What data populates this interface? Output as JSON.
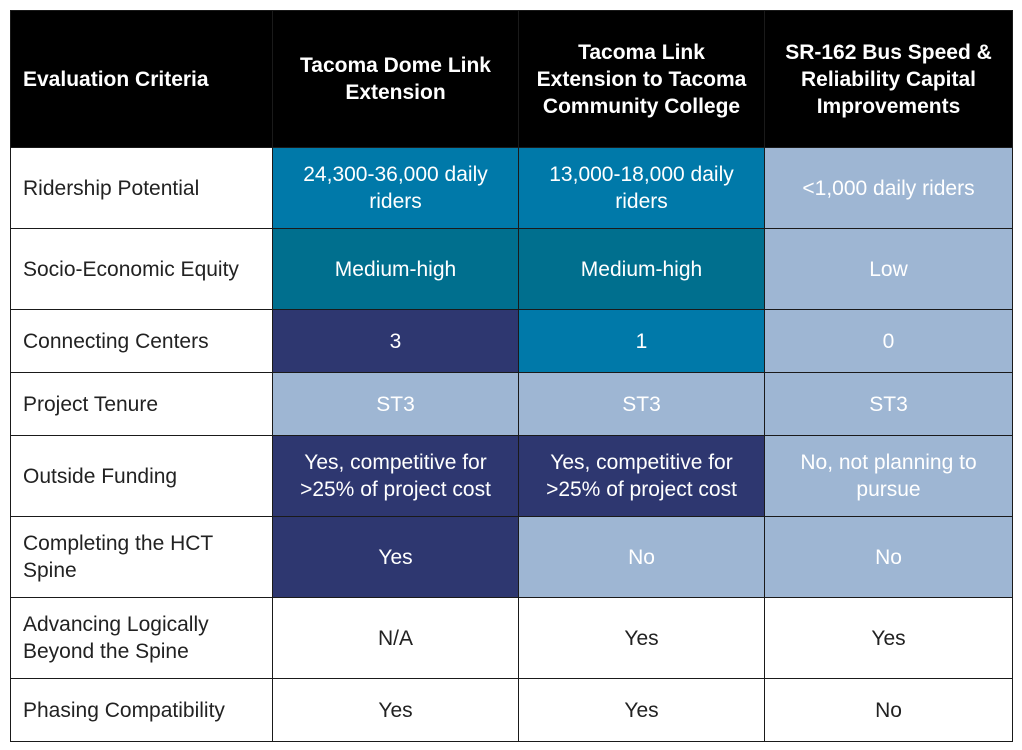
{
  "table": {
    "header": {
      "criteria": "Evaluation Criteria",
      "col1": "Tacoma Dome Link Extension",
      "col2": "Tacoma Link Extension to Tacoma Community College",
      "col3": "SR-162 Bus Speed & Reliability Capital Improvements"
    },
    "colors": {
      "blue": "#0079a9",
      "teal": "#006f8e",
      "navy": "#2e3770",
      "light": "#9eb6d3",
      "white": "#ffffff",
      "header": "#000000"
    },
    "rows": [
      {
        "criteria": "Ridership Potential",
        "c1": "24,300-36,000 daily riders",
        "c2": "13,000-18,000 daily riders",
        "c3": "<1,000 daily riders",
        "fills": [
          "blue",
          "blue",
          "light"
        ]
      },
      {
        "criteria": "Socio-Economic Equity",
        "c1": "Medium-high",
        "c2": "Medium-high",
        "c3": "Low",
        "fills": [
          "teal",
          "teal",
          "light"
        ]
      },
      {
        "criteria": "Connecting Centers",
        "c1": "3",
        "c2": "1",
        "c3": "0",
        "fills": [
          "navy",
          "blue",
          "light"
        ]
      },
      {
        "criteria": "Project Tenure",
        "c1": "ST3",
        "c2": "ST3",
        "c3": "ST3",
        "fills": [
          "light",
          "light",
          "light"
        ]
      },
      {
        "criteria": "Outside Funding",
        "c1": "Yes, competitive for >25% of project cost",
        "c2": "Yes, competitive for >25% of project cost",
        "c3": "No, not planning to pursue",
        "fills": [
          "navy",
          "navy",
          "light"
        ]
      },
      {
        "criteria": "Completing the HCT Spine",
        "c1": "Yes",
        "c2": "No",
        "c3": "No",
        "fills": [
          "navy",
          "light",
          "light"
        ]
      },
      {
        "criteria": "Advancing Logically Beyond the Spine",
        "c1": "N/A",
        "c2": "Yes",
        "c3": "Yes",
        "fills": [
          "white",
          "white",
          "white"
        ]
      },
      {
        "criteria": "Phasing Compatibility",
        "c1": "Yes",
        "c2": "Yes",
        "c3": "No",
        "fills": [
          "white",
          "white",
          "white"
        ]
      }
    ]
  }
}
